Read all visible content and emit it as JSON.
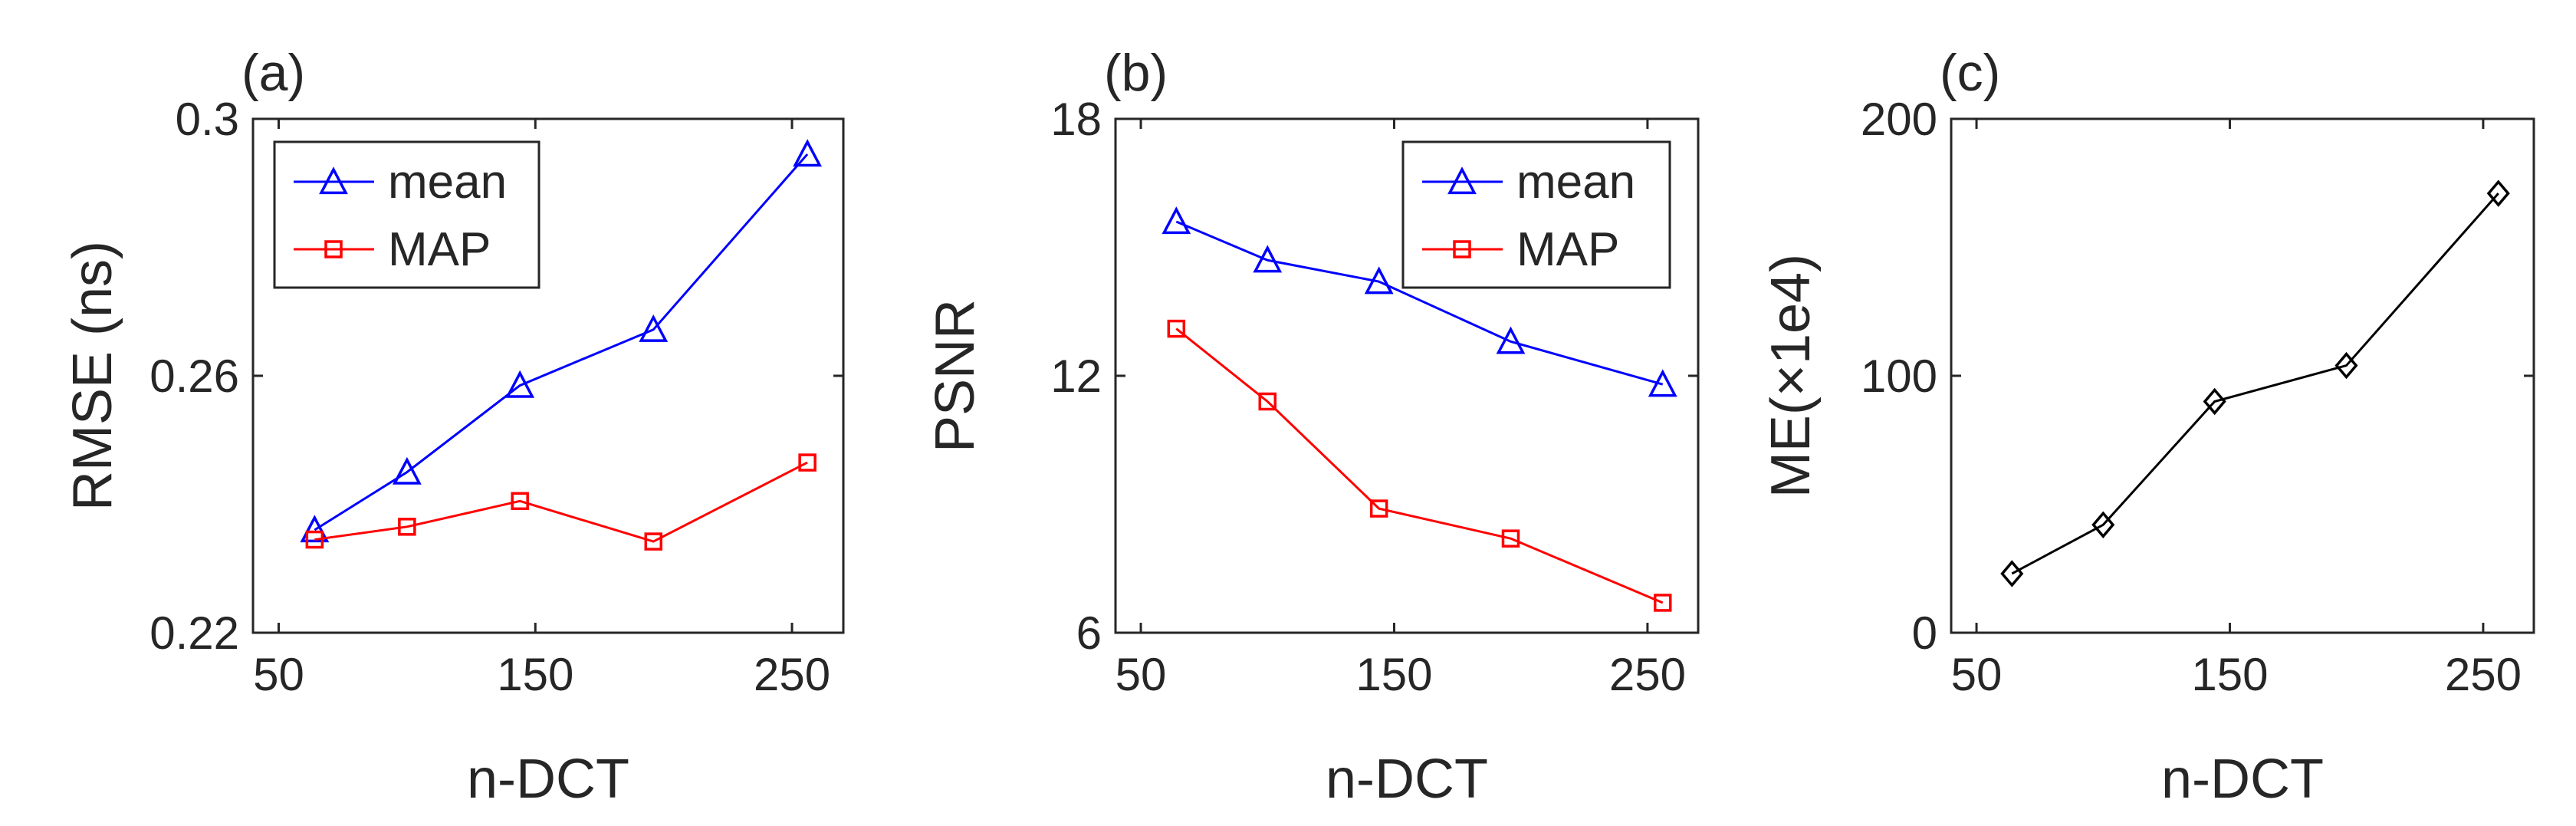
{
  "chart_data": [
    {
      "type": "line",
      "panel_label": "(a)",
      "xlabel": "n-DCT",
      "ylabel": "RMSE (ns)",
      "xlim": [
        40,
        270
      ],
      "ylim": [
        0.22,
        0.3
      ],
      "xticks": [
        50,
        150,
        250
      ],
      "xtick_labels": [
        "50",
        "150",
        "250"
      ],
      "yticks": [
        0.22,
        0.26,
        0.3
      ],
      "ytick_labels": [
        "0.22",
        "0.26",
        "0.3"
      ],
      "legend": "top-left",
      "x": [
        64,
        100,
        144,
        196,
        256
      ],
      "series": [
        {
          "name": "mean",
          "color": "#0000ff",
          "marker": "triangle",
          "values": [
            0.236,
            0.245,
            0.2585,
            0.2672,
            0.2945
          ]
        },
        {
          "name": "MAP",
          "color": "#ff0000",
          "marker": "square",
          "values": [
            0.2345,
            0.2365,
            0.2405,
            0.2342,
            0.2465
          ]
        }
      ]
    },
    {
      "type": "line",
      "panel_label": "(b)",
      "xlabel": "n-DCT",
      "ylabel": "PSNR",
      "xlim": [
        40,
        270
      ],
      "ylim": [
        6,
        18
      ],
      "xticks": [
        50,
        150,
        250
      ],
      "xtick_labels": [
        "50",
        "150",
        "250"
      ],
      "yticks": [
        6,
        12,
        18
      ],
      "ytick_labels": [
        "6",
        "12",
        "18"
      ],
      "legend": "top-right",
      "x": [
        64,
        100,
        144,
        196,
        256
      ],
      "series": [
        {
          "name": "mean",
          "color": "#0000ff",
          "marker": "triangle",
          "values": [
            15.6,
            14.7,
            14.2,
            12.8,
            11.8
          ]
        },
        {
          "name": "MAP",
          "color": "#ff0000",
          "marker": "square",
          "values": [
            13.1,
            11.4,
            8.9,
            8.2,
            6.7
          ]
        }
      ]
    },
    {
      "type": "line",
      "panel_label": "(c)",
      "xlabel": "n-DCT",
      "ylabel": "ME(×1e4)",
      "xlim": [
        40,
        270
      ],
      "ylim": [
        0,
        200
      ],
      "xticks": [
        50,
        150,
        250
      ],
      "xtick_labels": [
        "50",
        "150",
        "250"
      ],
      "yticks": [
        0,
        100,
        200
      ],
      "ytick_labels": [
        "0",
        "100",
        "200"
      ],
      "legend": "none",
      "x": [
        64,
        100,
        144,
        196,
        256
      ],
      "series": [
        {
          "name": "ME",
          "color": "#000000",
          "marker": "diamond",
          "values": [
            23,
            42,
            90,
            104,
            171
          ]
        }
      ]
    }
  ]
}
